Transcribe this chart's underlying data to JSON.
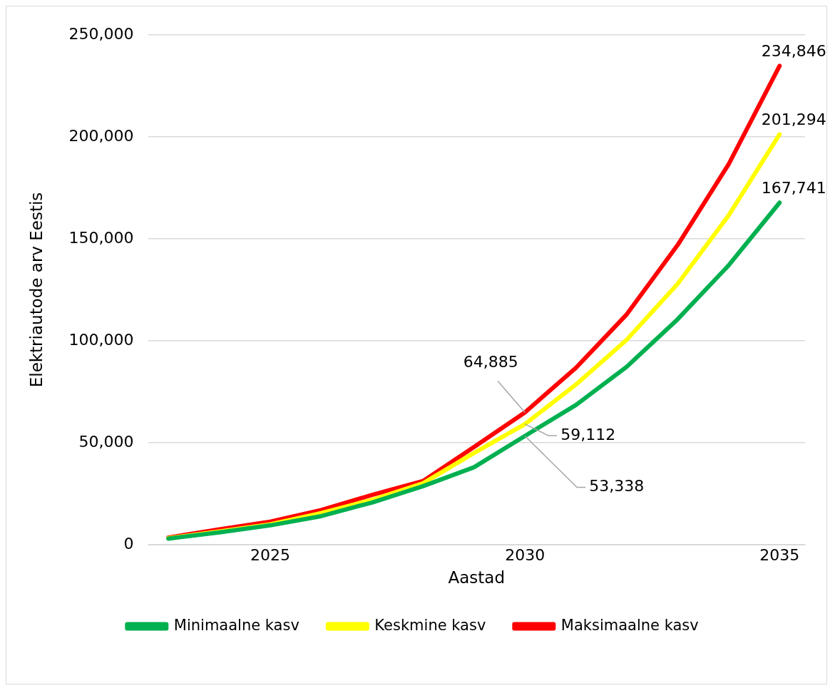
{
  "chart_data": {
    "type": "line",
    "xlabel": "Aastad",
    "ylabel": "Elektriautode arv Eestis",
    "x": [
      2023,
      2024,
      2025,
      2026,
      2027,
      2028,
      2029,
      2030,
      2031,
      2032,
      2033,
      2034,
      2035
    ],
    "series": [
      {
        "name": "Minimaalne kasv",
        "color": "#00b050",
        "values": [
          3000,
          6000,
          9500,
          14000,
          20700,
          28700,
          38000,
          53338,
          68500,
          87300,
          110600,
          137000,
          167741
        ],
        "value_labels": [
          null,
          null,
          null,
          null,
          null,
          null,
          null,
          "53,338",
          null,
          null,
          null,
          null,
          "167,741"
        ]
      },
      {
        "name": "Keskmine kasv",
        "color": "#ffff00",
        "values": [
          3200,
          6500,
          10000,
          15500,
          22000,
          30100,
          45000,
          59112,
          78500,
          100500,
          128000,
          161500,
          201294
        ],
        "value_labels": [
          null,
          null,
          null,
          null,
          null,
          null,
          null,
          "59,112",
          null,
          null,
          null,
          null,
          "201,294"
        ]
      },
      {
        "name": "Maksimaalne kasv",
        "color": "#ff0000",
        "values": [
          3500,
          7500,
          11300,
          17000,
          24400,
          31200,
          47900,
          64885,
          86700,
          113000,
          147000,
          186600,
          234846
        ],
        "value_labels": [
          null,
          null,
          null,
          null,
          null,
          null,
          null,
          "64,885",
          null,
          null,
          null,
          null,
          "234,846"
        ]
      }
    ],
    "xlim": [
      2022.6,
      2035.5
    ],
    "xticks": [
      2025,
      2030,
      2035
    ],
    "ylim": [
      0,
      250000
    ],
    "yticks": [
      {
        "value": 0,
        "label": "0"
      },
      {
        "value": 50000,
        "label": "50,000"
      },
      {
        "value": 100000,
        "label": "100,000"
      },
      {
        "value": 150000,
        "label": "150,000"
      },
      {
        "value": 200000,
        "label": "200,000"
      },
      {
        "value": 250000,
        "label": "250,000"
      }
    ],
    "grid": "y",
    "legend": "bottom",
    "marker": "none",
    "line_style": "solid"
  }
}
